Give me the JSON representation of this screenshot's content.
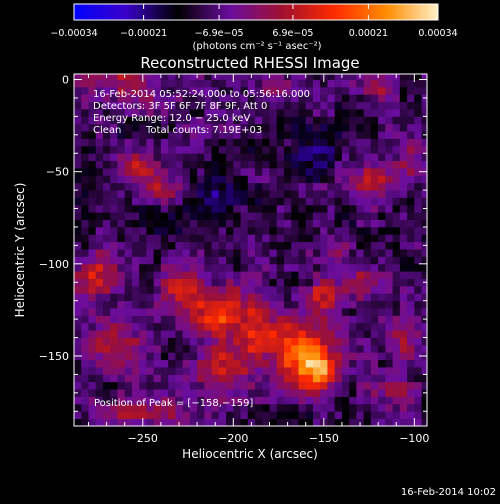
{
  "chart_data": {
    "type": "heatmap",
    "title": "Reconstructed RHESSI Image",
    "xlabel": "Heliocentric X (arcsec)",
    "ylabel": "Heliocentric Y (arcsec)",
    "xlim": [
      -288,
      -93
    ],
    "ylim": [
      -188,
      3
    ],
    "x_ticks": [
      -250,
      -200,
      -150,
      -100
    ],
    "y_ticks": [
      0,
      -50,
      -100,
      -150
    ],
    "x_tick_labels": [
      "−250",
      "−200",
      "−150",
      "−100"
    ],
    "y_tick_labels": [
      "0",
      "−50",
      "−100",
      "−150"
    ],
    "grid_spacing_arcsec": 4,
    "colorbar": {
      "range": [
        -0.00034,
        0.00034
      ],
      "ticks": [
        -0.00034,
        -0.00021,
        -6.9e-05,
        6.9e-05,
        0.00021,
        0.00034
      ],
      "tick_labels": [
        "−0.00034",
        "−0.00021",
        "−6.9e−05",
        "6.9e−05",
        "0.00021",
        "0.00034"
      ],
      "unit_label": "(photons cm⁻² s⁻¹ asec⁻²)",
      "colors": [
        "#0000ff",
        "#3a00c8",
        "#000000",
        "#6a0d9e",
        "#a01030",
        "#ff2a00",
        "#ff8c00",
        "#fff0c8"
      ]
    },
    "annotations": {
      "time_range": "16-Feb-2014 05:52:24.000 to 05:56:16.000",
      "detectors": "Detectors: 3F 5F 6F 7F 8F 9F, Att 0",
      "energy_range": "Energy Range: 12.0 − 25.0 keV",
      "clean_prefix": "Clean",
      "total_counts": "Total counts: 7.19E+03",
      "peak_position": "Position of Peak = [−158,−159]"
    },
    "timestamp": "16-Feb-2014 10:02",
    "peak": {
      "x": -158,
      "y": -159
    },
    "sources": [
      {
        "x": -158,
        "y": -159,
        "sx": 10,
        "sy": 8,
        "amp": 0.00034
      },
      {
        "x": -165,
        "y": -145,
        "sx": 12,
        "sy": 10,
        "amp": 0.0002
      },
      {
        "x": -210,
        "y": -127,
        "sx": 14,
        "sy": 8,
        "amp": 0.00026
      },
      {
        "x": -232,
        "y": -116,
        "sx": 8,
        "sy": 7,
        "amp": 0.00018
      },
      {
        "x": -190,
        "y": -142,
        "sx": 9,
        "sy": 8,
        "amp": 0.00017
      },
      {
        "x": -207,
        "y": -157,
        "sx": 11,
        "sy": 9,
        "amp": 0.00017
      },
      {
        "x": -152,
        "y": -121,
        "sx": 9,
        "sy": 6,
        "amp": 0.00019
      },
      {
        "x": -133,
        "y": -112,
        "sx": 6,
        "sy": 6,
        "amp": 0.00013
      },
      {
        "x": -147,
        "y": -97,
        "sx": 6,
        "sy": 5,
        "amp": 0.00012
      },
      {
        "x": -268,
        "y": -145,
        "sx": 14,
        "sy": 10,
        "amp": 0.00015
      },
      {
        "x": -278,
        "y": -108,
        "sx": 9,
        "sy": 9,
        "amp": 0.00016
      },
      {
        "x": -257,
        "y": -50,
        "sx": 7,
        "sy": 6,
        "amp": 0.00018
      },
      {
        "x": -240,
        "y": -60,
        "sx": 7,
        "sy": 7,
        "amp": 0.00012
      },
      {
        "x": -125,
        "y": -57,
        "sx": 8,
        "sy": 7,
        "amp": 0.0002
      },
      {
        "x": -105,
        "y": -45,
        "sx": 6,
        "sy": 8,
        "amp": 0.00011
      },
      {
        "x": -108,
        "y": -148,
        "sx": 6,
        "sy": 9,
        "amp": 0.00014
      },
      {
        "x": -115,
        "y": -170,
        "sx": 7,
        "sy": 6,
        "amp": 0.00013
      },
      {
        "x": -122,
        "y": -8,
        "sx": 7,
        "sy": 6,
        "amp": 0.00011
      },
      {
        "x": -178,
        "y": -8,
        "sx": 6,
        "sy": 5,
        "amp": 0.0001
      },
      {
        "x": -262,
        "y": 0,
        "sx": 20,
        "sy": 10,
        "amp": 0.00012
      },
      {
        "x": -255,
        "y": -182,
        "sx": 25,
        "sy": 5,
        "amp": 0.00011
      },
      {
        "x": -160,
        "y": -42,
        "sx": 12,
        "sy": 8,
        "amp": -8e-05
      },
      {
        "x": -214,
        "y": -65,
        "sx": 12,
        "sy": 7,
        "amp": -7e-05
      },
      {
        "x": -240,
        "y": -80,
        "sx": 10,
        "sy": 7,
        "amp": -8e-05
      }
    ],
    "background_level": -9.5e-05
  }
}
